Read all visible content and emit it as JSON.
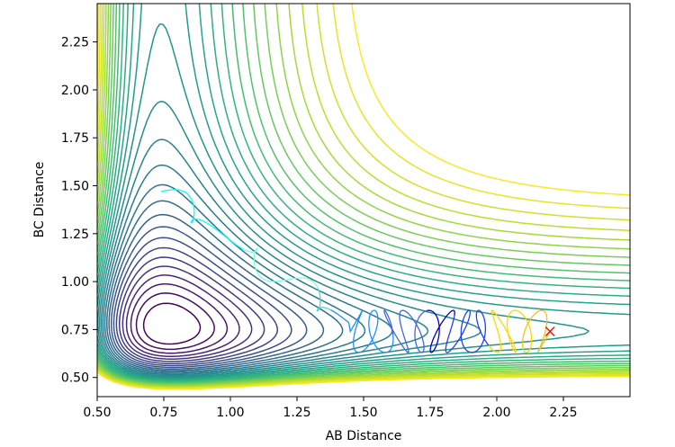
{
  "chart_data": {
    "type": "contour",
    "xlabel": "AB Distance",
    "ylabel": "BC Distance",
    "xlim": [
      0.5,
      2.5
    ],
    "ylim": [
      0.4,
      2.45
    ],
    "xticks": [
      "0.50",
      "0.75",
      "1.00",
      "1.25",
      "1.50",
      "1.75",
      "2.00",
      "2.25"
    ],
    "yticks": [
      "0.50",
      "0.75",
      "1.00",
      "1.25",
      "1.50",
      "1.75",
      "2.00",
      "2.25"
    ],
    "xtick_values": [
      0.5,
      0.75,
      1.0,
      1.25,
      1.5,
      1.75,
      2.0,
      2.25
    ],
    "ytick_values": [
      0.5,
      0.75,
      1.0,
      1.25,
      1.5,
      1.75,
      2.0,
      2.25
    ],
    "colormap": "viridis",
    "contour_levels": 30,
    "trajectory_start": {
      "x": 0.74,
      "y": 1.47
    },
    "trajectory_end": {
      "x": 2.2,
      "y": 0.74
    },
    "marker": {
      "x": 2.2,
      "y": 0.74,
      "symbol": "x",
      "color": "#ff0000"
    }
  }
}
